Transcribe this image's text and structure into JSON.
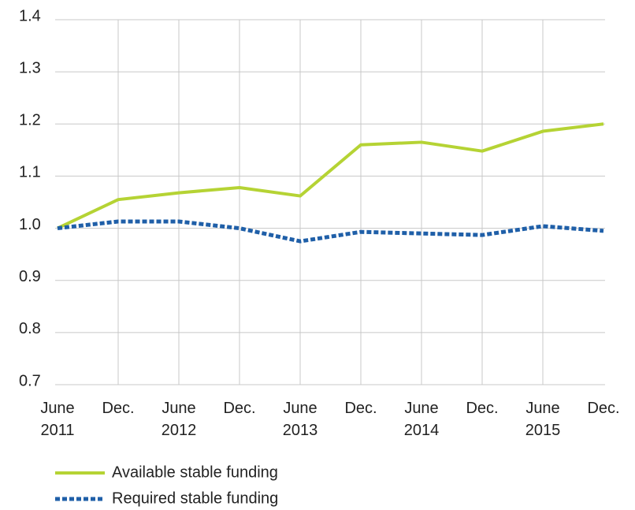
{
  "chart_data": {
    "type": "line",
    "categories": [
      "June\n2011",
      "Dec.",
      "June\n2012",
      "Dec.",
      "June\n2013",
      "Dec.",
      "June\n2014",
      "Dec.",
      "June\n2015",
      "Dec."
    ],
    "series": [
      {
        "name": "Available stable funding",
        "color": "#b5d334",
        "values": [
          1.0,
          1.055,
          1.068,
          1.078,
          1.062,
          1.16,
          1.165,
          1.148,
          1.186,
          1.2
        ]
      },
      {
        "name": "Required stable funding",
        "color": "#1f5fa8",
        "values": [
          1.0,
          1.013,
          1.013,
          1.0,
          0.975,
          0.993,
          0.99,
          0.987,
          1.004,
          0.995
        ]
      }
    ],
    "ylim": [
      0.7,
      1.4
    ],
    "yticks": [
      0.7,
      0.8,
      0.9,
      {
        "value": 1,
        "label": "1.0"
      },
      1.1,
      1.2,
      1.3,
      1.4
    ],
    "grid": true,
    "legend": "bottom"
  }
}
